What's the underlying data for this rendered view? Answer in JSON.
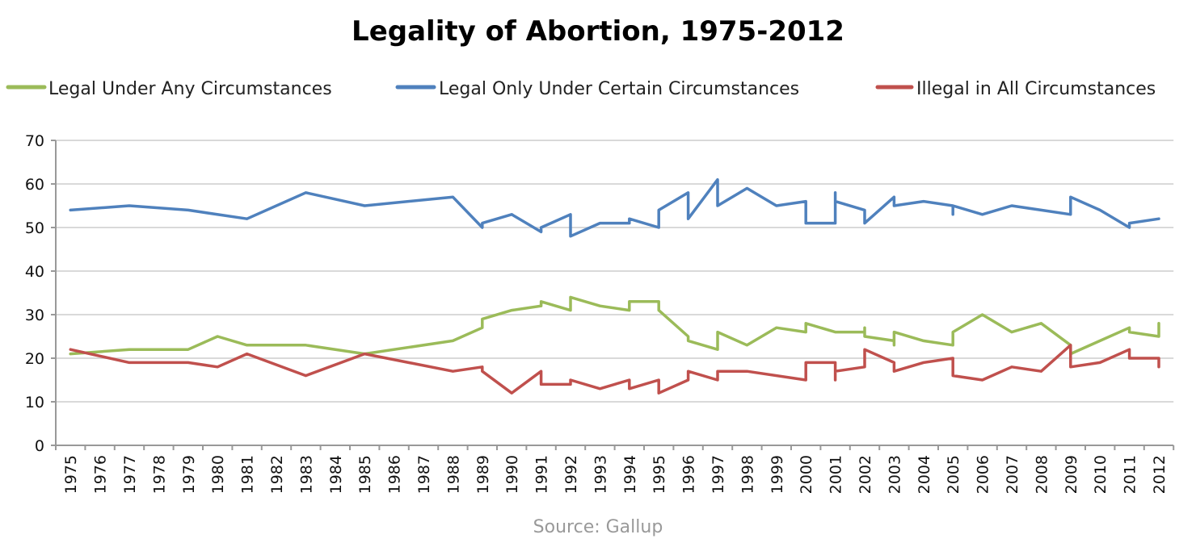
{
  "chart_data": {
    "type": "line",
    "title": "Legality of Abortion, 1975-2012",
    "source": "Source: Gallup",
    "xlabel": "",
    "ylabel": "",
    "ylim": [
      0,
      70
    ],
    "yticks": [
      "0",
      "10",
      "20",
      "30",
      "40",
      "50",
      "60",
      "70"
    ],
    "categories": [
      "1975",
      "1976",
      "1977",
      "1978",
      "1979",
      "1980",
      "1981",
      "1982",
      "1983",
      "1984",
      "1985",
      "1986",
      "1987",
      "1988",
      "1989",
      "1990",
      "1991",
      "1992",
      "1993",
      "1994",
      "1995",
      "1996",
      "1997",
      "1998",
      "1999",
      "2000",
      "2001",
      "2002",
      "2003",
      "2004",
      "2005",
      "2006",
      "2007",
      "2008",
      "2009",
      "2010",
      "2011",
      "2012"
    ],
    "grid": true,
    "legend_position": "top",
    "series": [
      {
        "name": "Legal Under Any Circumstances",
        "color": "#9bbb59",
        "points": [
          [
            1975,
            21
          ],
          [
            1977,
            22
          ],
          [
            1979,
            22
          ],
          [
            1980,
            25
          ],
          [
            1981,
            23
          ],
          [
            1983,
            23
          ],
          [
            1985,
            21
          ],
          [
            1988,
            24
          ],
          [
            1989,
            27
          ],
          [
            1989,
            29
          ],
          [
            1990,
            31
          ],
          [
            1991,
            32
          ],
          [
            1991,
            33
          ],
          [
            1992,
            31
          ],
          [
            1992,
            34
          ],
          [
            1993,
            32
          ],
          [
            1994,
            31
          ],
          [
            1994,
            33
          ],
          [
            1995,
            33
          ],
          [
            1995,
            31
          ],
          [
            1996,
            25
          ],
          [
            1996,
            24
          ],
          [
            1997,
            22
          ],
          [
            1997,
            26
          ],
          [
            1998,
            23
          ],
          [
            1999,
            27
          ],
          [
            2000,
            26
          ],
          [
            2000,
            28
          ],
          [
            2001,
            26
          ],
          [
            2002,
            26
          ],
          [
            2002,
            27
          ],
          [
            2002,
            25
          ],
          [
            2003,
            24
          ],
          [
            2003,
            23
          ],
          [
            2003,
            26
          ],
          [
            2004,
            24
          ],
          [
            2005,
            23
          ],
          [
            2005,
            26
          ],
          [
            2006,
            30
          ],
          [
            2007,
            26
          ],
          [
            2008,
            28
          ],
          [
            2009,
            23
          ],
          [
            2009,
            21
          ],
          [
            2010,
            24
          ],
          [
            2011,
            27
          ],
          [
            2011,
            26
          ],
          [
            2012,
            25
          ],
          [
            2012,
            28
          ]
        ]
      },
      {
        "name": "Legal Only Under Certain Circumstances",
        "color": "#4f81bd",
        "points": [
          [
            1975,
            54
          ],
          [
            1977,
            55
          ],
          [
            1979,
            54
          ],
          [
            1981,
            52
          ],
          [
            1983,
            58
          ],
          [
            1985,
            55
          ],
          [
            1988,
            57
          ],
          [
            1989,
            50
          ],
          [
            1989,
            51
          ],
          [
            1990,
            53
          ],
          [
            1991,
            49
          ],
          [
            1991,
            50
          ],
          [
            1992,
            53
          ],
          [
            1992,
            48
          ],
          [
            1993,
            51
          ],
          [
            1994,
            51
          ],
          [
            1994,
            52
          ],
          [
            1995,
            50
          ],
          [
            1995,
            54
          ],
          [
            1996,
            58
          ],
          [
            1996,
            52
          ],
          [
            1997,
            61
          ],
          [
            1997,
            55
          ],
          [
            1998,
            59
          ],
          [
            1999,
            55
          ],
          [
            2000,
            56
          ],
          [
            2000,
            51
          ],
          [
            2001,
            51
          ],
          [
            2001,
            58
          ],
          [
            2001,
            56
          ],
          [
            2002,
            54
          ],
          [
            2002,
            51
          ],
          [
            2003,
            57
          ],
          [
            2003,
            55
          ],
          [
            2004,
            56
          ],
          [
            2005,
            55
          ],
          [
            2005,
            53
          ],
          [
            2005,
            55
          ],
          [
            2006,
            53
          ],
          [
            2007,
            55
          ],
          [
            2008,
            54
          ],
          [
            2009,
            53
          ],
          [
            2009,
            57
          ],
          [
            2010,
            54
          ],
          [
            2011,
            50
          ],
          [
            2011,
            51
          ],
          [
            2012,
            52
          ]
        ]
      },
      {
        "name": "Illegal in All Circumstances",
        "color": "#c0504d",
        "points": [
          [
            1975,
            22
          ],
          [
            1977,
            19
          ],
          [
            1979,
            19
          ],
          [
            1980,
            18
          ],
          [
            1981,
            21
          ],
          [
            1983,
            16
          ],
          [
            1985,
            21
          ],
          [
            1988,
            17
          ],
          [
            1989,
            18
          ],
          [
            1989,
            17
          ],
          [
            1990,
            12
          ],
          [
            1991,
            17
          ],
          [
            1991,
            14
          ],
          [
            1992,
            14
          ],
          [
            1992,
            15
          ],
          [
            1993,
            13
          ],
          [
            1994,
            15
          ],
          [
            1994,
            13
          ],
          [
            1995,
            15
          ],
          [
            1995,
            12
          ],
          [
            1996,
            15
          ],
          [
            1996,
            17
          ],
          [
            1997,
            15
          ],
          [
            1997,
            17
          ],
          [
            1998,
            17
          ],
          [
            2000,
            15
          ],
          [
            2000,
            19
          ],
          [
            2001,
            19
          ],
          [
            2001,
            15
          ],
          [
            2001,
            17
          ],
          [
            2002,
            18
          ],
          [
            2002,
            22
          ],
          [
            2003,
            19
          ],
          [
            2003,
            17
          ],
          [
            2004,
            19
          ],
          [
            2005,
            20
          ],
          [
            2005,
            16
          ],
          [
            2006,
            15
          ],
          [
            2007,
            18
          ],
          [
            2008,
            17
          ],
          [
            2009,
            23
          ],
          [
            2009,
            18
          ],
          [
            2010,
            19
          ],
          [
            2011,
            22
          ],
          [
            2011,
            20
          ],
          [
            2012,
            20
          ],
          [
            2012,
            18
          ]
        ]
      }
    ]
  }
}
